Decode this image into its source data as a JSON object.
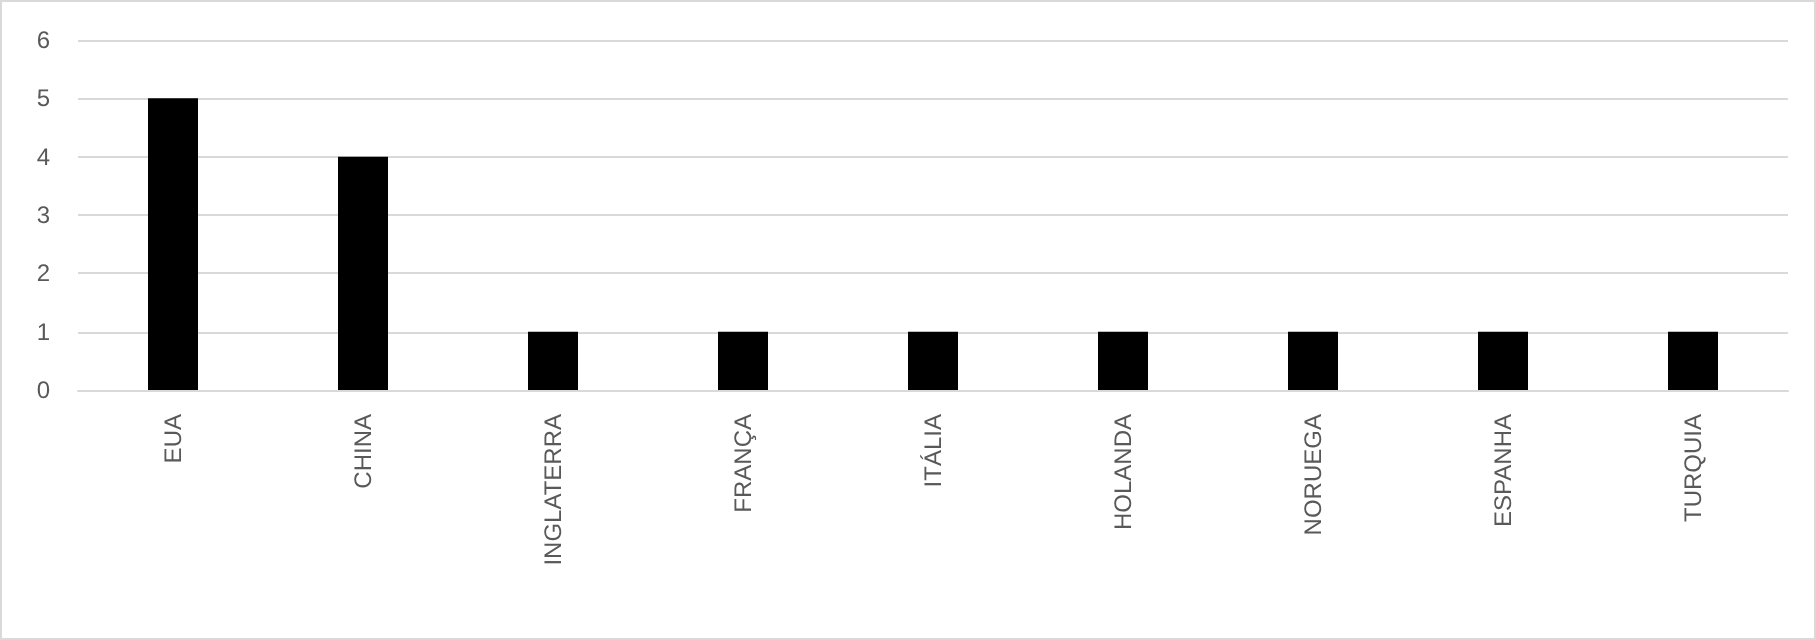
{
  "chart_data": {
    "type": "bar",
    "categories": [
      "EUA",
      "CHINA",
      "INGLATERRA",
      "FRANÇA",
      "ITÁLIA",
      "HOLANDA",
      "NORUEGA",
      "ESPANHA",
      "TURQUIA"
    ],
    "values": [
      5,
      4,
      1,
      1,
      1,
      1,
      1,
      1,
      1
    ],
    "color": "#000000",
    "ylim": [
      0,
      6
    ],
    "yticks": [
      0,
      1,
      2,
      3,
      4,
      5,
      6
    ],
    "grid": "y"
  }
}
